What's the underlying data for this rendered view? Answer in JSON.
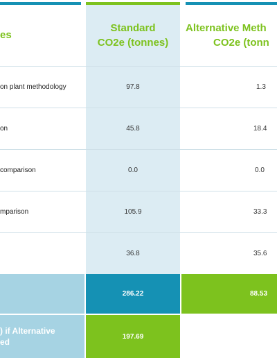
{
  "table": {
    "header": {
      "col0": "es",
      "col1_line1": "Standard",
      "col1_line2": "CO2e (tonnes)",
      "col2_line1": "Alternative Meth",
      "col2_line2": "CO2e (tonn"
    },
    "rows": [
      {
        "label": "on plant methodology",
        "standard": "97.8",
        "alternative": "1.3"
      },
      {
        "label": "on",
        "standard": "45.8",
        "alternative": "18.4"
      },
      {
        "label": "comparison",
        "standard": "0.0",
        "alternative": "0.0"
      },
      {
        "label": "mparison",
        "standard": "105.9",
        "alternative": "33.3"
      },
      {
        "label": "",
        "standard": "36.8",
        "alternative": "35.6"
      }
    ],
    "total": {
      "standard": "286.22",
      "alternative": "88.53"
    },
    "saving": {
      "label_line1": ") if Alternative",
      "label_line2": "ed",
      "value": "197.69"
    }
  },
  "colors": {
    "green": "#7dc21e",
    "teal": "#1591b4",
    "light_blue": "#dcecf3",
    "saving_bg": "#a6d3e3"
  }
}
